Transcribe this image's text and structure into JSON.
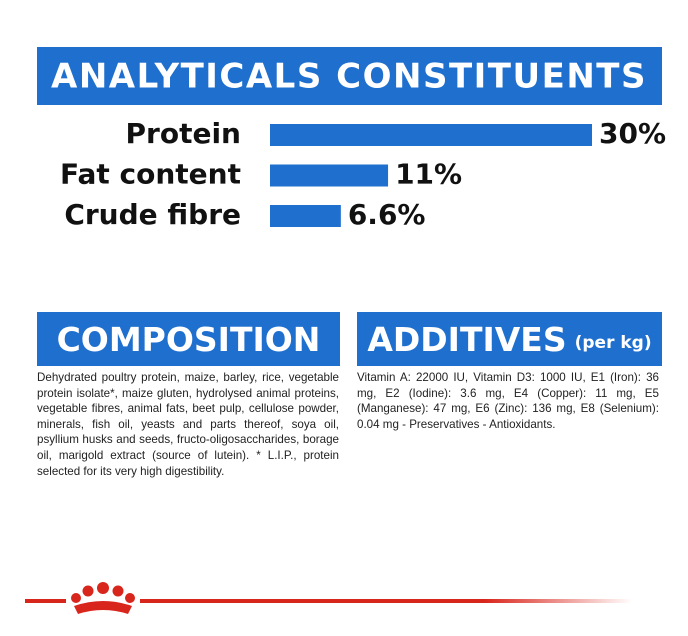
{
  "chart_data": {
    "type": "bar",
    "orientation": "horizontal",
    "title": "ANALYTICALS CONSTITUENTS",
    "categories": [
      "Protein",
      "Fat content",
      "Crude fibre"
    ],
    "values": [
      30,
      11,
      6.6
    ],
    "value_labels": [
      "30%",
      "11%",
      "6.6%"
    ],
    "color": "#1f6fce"
  },
  "composition": {
    "title": "COMPOSITION",
    "text": "Dehydrated poultry protein, maize, barley, rice, vegetable protein isolate*, maize gluten, hydrolysed animal proteins, vegetable fibres, animal fats, beet pulp, cellulose powder, minerals, fish oil, yeasts and parts thereof, soya oil, psyllium husks and seeds, fructo-oligosaccharides, borage oil, marigold extract (source of lutein). * L.I.P., protein selected for its very high digestibility."
  },
  "additives": {
    "title": "ADDITIVES",
    "unit": "(per kg)",
    "text": "Vitamin A: 22000 IU, Vitamin D3: 1000 IU, E1 (Iron): 36 mg, E2 (Iodine): 3.6 mg, E4 (Copper): 11 mg, E5 (Manganese): 47 mg, E6 (Zinc): 136 mg, E8 (Selenium): 0.04 mg - Preservatives - Antioxidants."
  }
}
